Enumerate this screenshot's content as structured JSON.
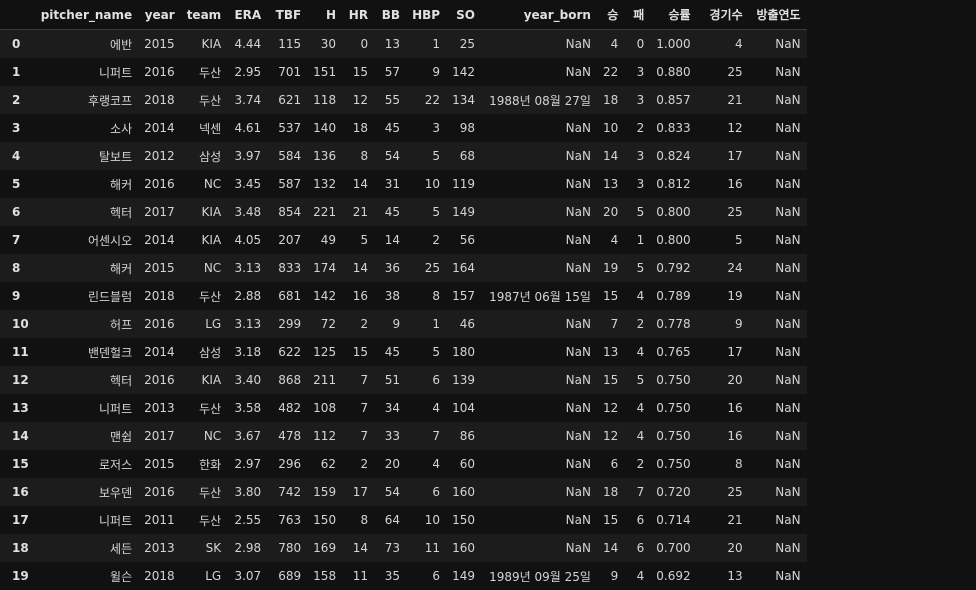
{
  "columns": [
    "pitcher_name",
    "year",
    "team",
    "ERA",
    "TBF",
    "H",
    "HR",
    "BB",
    "HBP",
    "SO",
    "year_born",
    "승",
    "패",
    "승률",
    "경기수",
    "방출연도"
  ],
  "rows": [
    {
      "idx": "0",
      "cells": [
        "에반",
        "2015",
        "KIA",
        "4.44",
        "115",
        "30",
        "0",
        "13",
        "1",
        "25",
        "NaN",
        "4",
        "0",
        "1.000",
        "4",
        "NaN"
      ]
    },
    {
      "idx": "1",
      "cells": [
        "니퍼트",
        "2016",
        "두산",
        "2.95",
        "701",
        "151",
        "15",
        "57",
        "9",
        "142",
        "NaN",
        "22",
        "3",
        "0.880",
        "25",
        "NaN"
      ]
    },
    {
      "idx": "2",
      "cells": [
        "후랭코프",
        "2018",
        "두산",
        "3.74",
        "621",
        "118",
        "12",
        "55",
        "22",
        "134",
        "1988년 08월 27일",
        "18",
        "3",
        "0.857",
        "21",
        "NaN"
      ]
    },
    {
      "idx": "3",
      "cells": [
        "소사",
        "2014",
        "넥센",
        "4.61",
        "537",
        "140",
        "18",
        "45",
        "3",
        "98",
        "NaN",
        "10",
        "2",
        "0.833",
        "12",
        "NaN"
      ]
    },
    {
      "idx": "4",
      "cells": [
        "탈보트",
        "2012",
        "삼성",
        "3.97",
        "584",
        "136",
        "8",
        "54",
        "5",
        "68",
        "NaN",
        "14",
        "3",
        "0.824",
        "17",
        "NaN"
      ]
    },
    {
      "idx": "5",
      "cells": [
        "해커",
        "2016",
        "NC",
        "3.45",
        "587",
        "132",
        "14",
        "31",
        "10",
        "119",
        "NaN",
        "13",
        "3",
        "0.812",
        "16",
        "NaN"
      ]
    },
    {
      "idx": "6",
      "cells": [
        "헥터",
        "2017",
        "KIA",
        "3.48",
        "854",
        "221",
        "21",
        "45",
        "5",
        "149",
        "NaN",
        "20",
        "5",
        "0.800",
        "25",
        "NaN"
      ]
    },
    {
      "idx": "7",
      "cells": [
        "어센시오",
        "2014",
        "KIA",
        "4.05",
        "207",
        "49",
        "5",
        "14",
        "2",
        "56",
        "NaN",
        "4",
        "1",
        "0.800",
        "5",
        "NaN"
      ]
    },
    {
      "idx": "8",
      "cells": [
        "해커",
        "2015",
        "NC",
        "3.13",
        "833",
        "174",
        "14",
        "36",
        "25",
        "164",
        "NaN",
        "19",
        "5",
        "0.792",
        "24",
        "NaN"
      ]
    },
    {
      "idx": "9",
      "cells": [
        "린드블럼",
        "2018",
        "두산",
        "2.88",
        "681",
        "142",
        "16",
        "38",
        "8",
        "157",
        "1987년 06월 15일",
        "15",
        "4",
        "0.789",
        "19",
        "NaN"
      ]
    },
    {
      "idx": "10",
      "cells": [
        "허프",
        "2016",
        "LG",
        "3.13",
        "299",
        "72",
        "2",
        "9",
        "1",
        "46",
        "NaN",
        "7",
        "2",
        "0.778",
        "9",
        "NaN"
      ]
    },
    {
      "idx": "11",
      "cells": [
        "밴덴헐크",
        "2014",
        "삼성",
        "3.18",
        "622",
        "125",
        "15",
        "45",
        "5",
        "180",
        "NaN",
        "13",
        "4",
        "0.765",
        "17",
        "NaN"
      ]
    },
    {
      "idx": "12",
      "cells": [
        "헥터",
        "2016",
        "KIA",
        "3.40",
        "868",
        "211",
        "7",
        "51",
        "6",
        "139",
        "NaN",
        "15",
        "5",
        "0.750",
        "20",
        "NaN"
      ]
    },
    {
      "idx": "13",
      "cells": [
        "니퍼트",
        "2013",
        "두산",
        "3.58",
        "482",
        "108",
        "7",
        "34",
        "4",
        "104",
        "NaN",
        "12",
        "4",
        "0.750",
        "16",
        "NaN"
      ]
    },
    {
      "idx": "14",
      "cells": [
        "맨쉽",
        "2017",
        "NC",
        "3.67",
        "478",
        "112",
        "7",
        "33",
        "7",
        "86",
        "NaN",
        "12",
        "4",
        "0.750",
        "16",
        "NaN"
      ]
    },
    {
      "idx": "15",
      "cells": [
        "로저스",
        "2015",
        "한화",
        "2.97",
        "296",
        "62",
        "2",
        "20",
        "4",
        "60",
        "NaN",
        "6",
        "2",
        "0.750",
        "8",
        "NaN"
      ]
    },
    {
      "idx": "16",
      "cells": [
        "보우덴",
        "2016",
        "두산",
        "3.80",
        "742",
        "159",
        "17",
        "54",
        "6",
        "160",
        "NaN",
        "18",
        "7",
        "0.720",
        "25",
        "NaN"
      ]
    },
    {
      "idx": "17",
      "cells": [
        "니퍼트",
        "2011",
        "두산",
        "2.55",
        "763",
        "150",
        "8",
        "64",
        "10",
        "150",
        "NaN",
        "15",
        "6",
        "0.714",
        "21",
        "NaN"
      ]
    },
    {
      "idx": "18",
      "cells": [
        "세든",
        "2013",
        "SK",
        "2.98",
        "780",
        "169",
        "14",
        "73",
        "11",
        "160",
        "NaN",
        "14",
        "6",
        "0.700",
        "20",
        "NaN"
      ]
    },
    {
      "idx": "19",
      "cells": [
        "윌슨",
        "2018",
        "LG",
        "3.07",
        "689",
        "158",
        "11",
        "35",
        "6",
        "149",
        "1989년 09월 25일",
        "9",
        "4",
        "0.692",
        "13",
        "NaN"
      ]
    }
  ]
}
